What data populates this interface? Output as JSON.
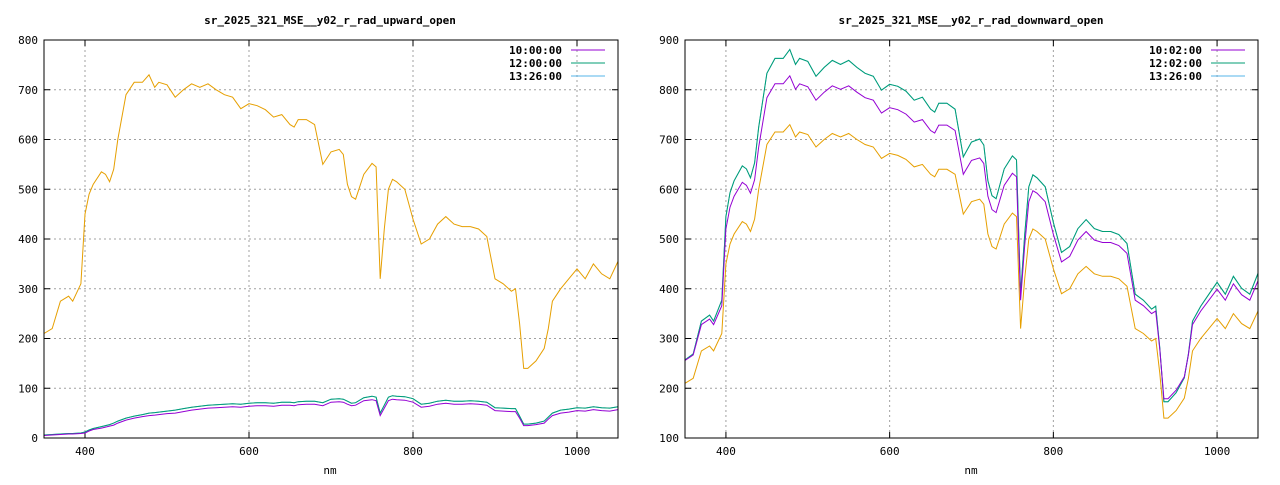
{
  "chart_data": [
    {
      "type": "line",
      "title": "sr_2025_321_MSE__y02_r_rad_upward_open",
      "xlabel": "nm",
      "ylabel": "",
      "xlim": [
        350,
        1050
      ],
      "ylim": [
        0,
        800
      ],
      "xticks": [
        400,
        600,
        800,
        1000
      ],
      "yticks": [
        0,
        100,
        200,
        300,
        400,
        500,
        600,
        700,
        800
      ],
      "grid": true,
      "legend": "top-right",
      "x": [
        350,
        360,
        370,
        380,
        385,
        395,
        400,
        405,
        410,
        420,
        425,
        430,
        435,
        440,
        450,
        460,
        470,
        478,
        485,
        490,
        500,
        510,
        520,
        530,
        540,
        550,
        560,
        570,
        580,
        590,
        600,
        610,
        620,
        630,
        640,
        650,
        655,
        660,
        670,
        680,
        690,
        700,
        710,
        715,
        720,
        725,
        730,
        740,
        750,
        755,
        760,
        765,
        770,
        775,
        780,
        790,
        800,
        810,
        820,
        830,
        840,
        850,
        860,
        870,
        880,
        890,
        900,
        910,
        920,
        925,
        930,
        935,
        940,
        950,
        960,
        965,
        970,
        980,
        990,
        1000,
        1010,
        1020,
        1030,
        1040,
        1050
      ],
      "series": [
        {
          "name": "10:00:00",
          "color": "#9400d3",
          "values": [
            5,
            6,
            7,
            8,
            8,
            9,
            10,
            14,
            17,
            20,
            22,
            24,
            26,
            30,
            36,
            40,
            43,
            45,
            46,
            47,
            49,
            50,
            53,
            56,
            58,
            60,
            61,
            62,
            63,
            62,
            64,
            65,
            65,
            64,
            66,
            66,
            65,
            67,
            68,
            68,
            65,
            72,
            73,
            72,
            68,
            65,
            66,
            75,
            77,
            75,
            45,
            60,
            75,
            78,
            77,
            76,
            72,
            62,
            64,
            68,
            70,
            68,
            68,
            69,
            68,
            66,
            55,
            54,
            53,
            53,
            40,
            25,
            25,
            27,
            30,
            38,
            45,
            50,
            52,
            55,
            54,
            57,
            55,
            54,
            57
          ]
        },
        {
          "name": "12:00:00",
          "color": "#009e73",
          "values": [
            6,
            7,
            8,
            9,
            9,
            10,
            12,
            16,
            19,
            23,
            25,
            27,
            30,
            34,
            40,
            44,
            47,
            50,
            51,
            52,
            54,
            56,
            59,
            62,
            64,
            66,
            67,
            68,
            69,
            68,
            70,
            71,
            71,
            70,
            72,
            72,
            71,
            73,
            74,
            74,
            71,
            78,
            79,
            78,
            74,
            70,
            71,
            81,
            84,
            82,
            50,
            66,
            82,
            85,
            84,
            83,
            79,
            68,
            70,
            74,
            76,
            74,
            74,
            75,
            74,
            72,
            61,
            60,
            59,
            59,
            44,
            28,
            28,
            30,
            34,
            42,
            50,
            56,
            58,
            61,
            60,
            63,
            61,
            60,
            63
          ]
        },
        {
          "name": "13:26:00",
          "color": "#56b4e9",
          "values": [
            6,
            7,
            8,
            9,
            9,
            10,
            12,
            16,
            19,
            23,
            25,
            27,
            30,
            34,
            40,
            44,
            47,
            50,
            51,
            52,
            54,
            56,
            59,
            62,
            64,
            66,
            67,
            68,
            69,
            68,
            70,
            71,
            71,
            70,
            72,
            72,
            71,
            73,
            74,
            74,
            71,
            78,
            79,
            78,
            74,
            70,
            71,
            81,
            84,
            82,
            50,
            66,
            82,
            85,
            84,
            83,
            79,
            68,
            70,
            74,
            76,
            74,
            74,
            75,
            74,
            72,
            61,
            60,
            59,
            59,
            44,
            28,
            28,
            30,
            34,
            42,
            50,
            56,
            58,
            61,
            60,
            63,
            61,
            60,
            63
          ]
        },
        {
          "name": "",
          "color": "#e69f00",
          "values": [
            210,
            220,
            275,
            285,
            275,
            310,
            450,
            490,
            510,
            535,
            530,
            515,
            540,
            600,
            690,
            715,
            715,
            730,
            705,
            715,
            710,
            685,
            700,
            712,
            705,
            712,
            700,
            690,
            685,
            662,
            672,
            668,
            660,
            645,
            650,
            630,
            625,
            640,
            640,
            630,
            550,
            575,
            580,
            570,
            510,
            485,
            480,
            530,
            552,
            545,
            320,
            420,
            500,
            520,
            515,
            500,
            440,
            390,
            400,
            430,
            445,
            430,
            425,
            425,
            420,
            405,
            320,
            310,
            295,
            300,
            230,
            140,
            140,
            155,
            180,
            220,
            275,
            300,
            320,
            340,
            320,
            350,
            330,
            320,
            355
          ]
        }
      ]
    },
    {
      "type": "line",
      "title": "sr_2025_321_MSE__y02_r_rad_downward_open",
      "xlabel": "nm",
      "ylabel": "",
      "xlim": [
        350,
        1050
      ],
      "ylim": [
        100,
        900
      ],
      "xticks": [
        400,
        600,
        800,
        1000
      ],
      "yticks": [
        100,
        200,
        300,
        400,
        500,
        600,
        700,
        800,
        900
      ],
      "grid": true,
      "legend": "top-right",
      "x": [
        350,
        360,
        370,
        380,
        385,
        395,
        400,
        405,
        410,
        420,
        425,
        430,
        435,
        440,
        450,
        460,
        470,
        478,
        485,
        490,
        500,
        510,
        520,
        530,
        540,
        550,
        560,
        570,
        580,
        590,
        600,
        610,
        620,
        630,
        640,
        650,
        655,
        660,
        670,
        680,
        690,
        700,
        710,
        715,
        720,
        725,
        730,
        740,
        750,
        755,
        760,
        765,
        770,
        775,
        780,
        790,
        800,
        810,
        820,
        830,
        840,
        850,
        860,
        870,
        880,
        890,
        900,
        910,
        920,
        925,
        930,
        935,
        940,
        950,
        960,
        965,
        970,
        980,
        990,
        1000,
        1010,
        1020,
        1030,
        1040,
        1050
      ],
      "series": [
        {
          "name": "10:02:00",
          "color": "#9400d3",
          "values": [
            256,
            267,
            328,
            339,
            328,
            366,
            520,
            564,
            586,
            614,
            608,
            592,
            619,
            685,
            784,
            812,
            812,
            828,
            801,
            812,
            806,
            779,
            795,
            808,
            801,
            808,
            795,
            784,
            779,
            753,
            764,
            760,
            751,
            735,
            740,
            718,
            713,
            729,
            729,
            718,
            630,
            658,
            663,
            652,
            586,
            559,
            553,
            608,
            632,
            625,
            377,
            487,
            575,
            597,
            592,
            575,
            509,
            454,
            465,
            498,
            515,
            498,
            493,
            493,
            487,
            471,
            377,
            366,
            350,
            355,
            278,
            179,
            179,
            196,
            223,
            267,
            328,
            355,
            377,
            399,
            377,
            410,
            388,
            377,
            416
          ]
        },
        {
          "name": "12:02:00",
          "color": "#009e73",
          "values": [
            257,
            269,
            335,
            347,
            335,
            377,
            545,
            593,
            617,
            647,
            641,
            623,
            653,
            725,
            833,
            863,
            863,
            881,
            851,
            863,
            857,
            827,
            845,
            859,
            851,
            859,
            845,
            833,
            827,
            799,
            811,
            807,
            797,
            779,
            785,
            761,
            755,
            773,
            773,
            761,
            665,
            695,
            701,
            689,
            617,
            587,
            581,
            641,
            667,
            659,
            389,
            509,
            605,
            629,
            623,
            605,
            533,
            473,
            485,
            521,
            539,
            521,
            515,
            515,
            509,
            491,
            389,
            377,
            359,
            365,
            281,
            173,
            173,
            191,
            221,
            269,
            335,
            365,
            389,
            413,
            389,
            425,
            401,
            389,
            431
          ]
        },
        {
          "name": "13:26:00",
          "color": "#56b4e9",
          "values": [
            257,
            269,
            335,
            347,
            335,
            377,
            545,
            593,
            617,
            647,
            641,
            623,
            653,
            725,
            833,
            863,
            863,
            881,
            851,
            863,
            857,
            827,
            845,
            859,
            851,
            859,
            845,
            833,
            827,
            799,
            811,
            807,
            797,
            779,
            785,
            761,
            755,
            773,
            773,
            761,
            665,
            695,
            701,
            689,
            617,
            587,
            581,
            641,
            667,
            659,
            389,
            509,
            605,
            629,
            623,
            605,
            533,
            473,
            485,
            521,
            539,
            521,
            515,
            515,
            509,
            491,
            389,
            377,
            359,
            365,
            281,
            173,
            173,
            191,
            221,
            269,
            335,
            365,
            389,
            413,
            389,
            425,
            401,
            389,
            431
          ]
        },
        {
          "name": "",
          "color": "#e69f00",
          "values": [
            210,
            220,
            275,
            285,
            275,
            310,
            450,
            490,
            510,
            535,
            530,
            515,
            540,
            600,
            690,
            715,
            715,
            730,
            705,
            715,
            710,
            685,
            700,
            712,
            705,
            712,
            700,
            690,
            685,
            662,
            672,
            668,
            660,
            645,
            650,
            630,
            625,
            640,
            640,
            630,
            550,
            575,
            580,
            570,
            510,
            485,
            480,
            530,
            552,
            545,
            320,
            420,
            500,
            520,
            515,
            500,
            440,
            390,
            400,
            430,
            445,
            430,
            425,
            425,
            420,
            405,
            320,
            310,
            295,
            300,
            230,
            140,
            140,
            155,
            180,
            220,
            275,
            300,
            320,
            340,
            320,
            350,
            330,
            320,
            355
          ]
        }
      ]
    }
  ]
}
